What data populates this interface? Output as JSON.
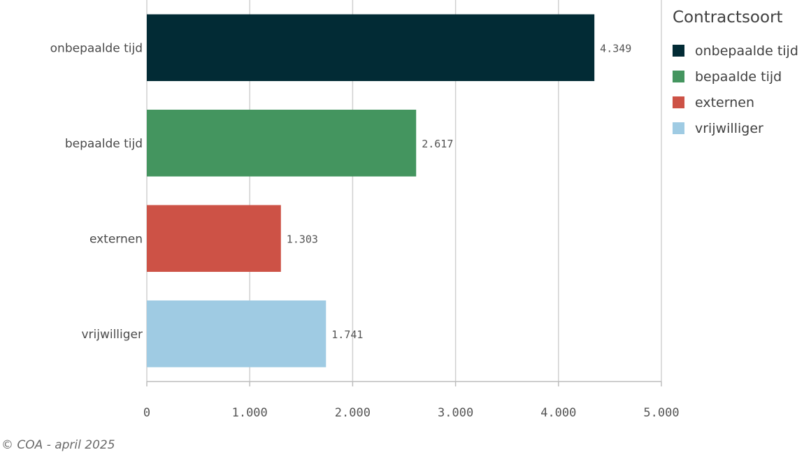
{
  "chart_data": {
    "type": "bar",
    "orientation": "horizontal",
    "categories": [
      "onbepaalde tijd",
      "bepaalde tijd",
      "externen",
      "vrijwilliger"
    ],
    "values": [
      4349,
      2617,
      1303,
      1741
    ],
    "value_labels": [
      "4.349",
      "2.617",
      "1.303",
      "1.741"
    ],
    "colors": [
      "#022b35",
      "#44955f",
      "#cd5246",
      "#9fcbe3"
    ],
    "xlim": [
      0,
      5000
    ],
    "xticks": [
      0,
      1000,
      2000,
      3000,
      4000,
      5000
    ],
    "xtick_labels": [
      "0",
      "1.000",
      "2.000",
      "3.000",
      "4.000",
      "5.000"
    ],
    "grid": true,
    "legend": {
      "title": "Contractsoort",
      "placement": "right",
      "items": [
        {
          "label": "onbepaalde tijd",
          "color": "#022b35"
        },
        {
          "label": "bepaalde tijd",
          "color": "#44955f"
        },
        {
          "label": "externen",
          "color": "#cd5246"
        },
        {
          "label": "vrijwilliger",
          "color": "#9fcbe3"
        }
      ]
    }
  },
  "footer": {
    "source": "© COA - april 2025"
  }
}
